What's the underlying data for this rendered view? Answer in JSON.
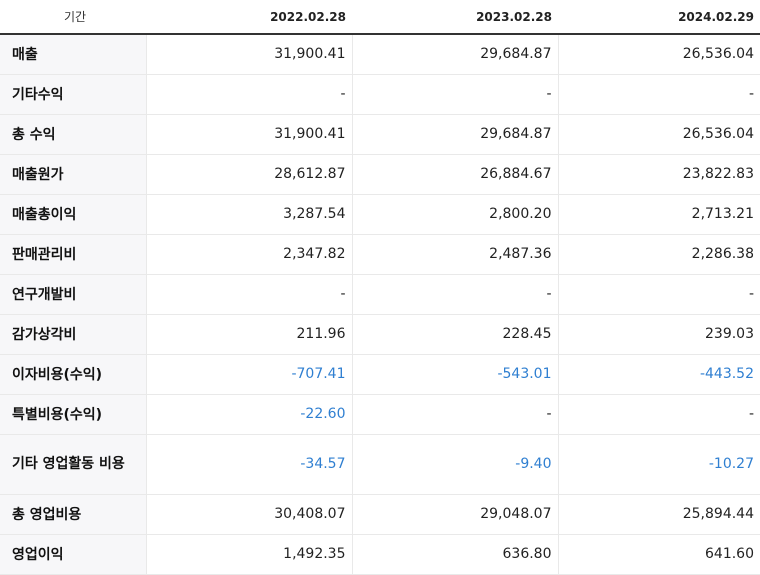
{
  "table": {
    "header": {
      "label": "기간",
      "periods": [
        "2022.02.28",
        "2023.02.28",
        "2024.02.29"
      ]
    },
    "rows": [
      {
        "label": "매출",
        "values": [
          "31,900.41",
          "29,684.87",
          "26,536.04"
        ]
      },
      {
        "label": "기타수익",
        "values": [
          "-",
          "-",
          "-"
        ]
      },
      {
        "label": "총 수익",
        "values": [
          "31,900.41",
          "29,684.87",
          "26,536.04"
        ]
      },
      {
        "label": "매출원가",
        "values": [
          "28,612.87",
          "26,884.67",
          "23,822.83"
        ]
      },
      {
        "label": "매출총이익",
        "values": [
          "3,287.54",
          "2,800.20",
          "2,713.21"
        ]
      },
      {
        "label": "판매관리비",
        "values": [
          "2,347.82",
          "2,487.36",
          "2,286.38"
        ]
      },
      {
        "label": "연구개발비",
        "values": [
          "-",
          "-",
          "-"
        ]
      },
      {
        "label": "감가상각비",
        "values": [
          "211.96",
          "228.45",
          "239.03"
        ]
      },
      {
        "label": "이자비용(수익)",
        "values": [
          "-707.41",
          "-543.01",
          "-443.52"
        ]
      },
      {
        "label": "특별비용(수익)",
        "values": [
          "-22.60",
          "-",
          "-"
        ]
      },
      {
        "label": "기타 영업활동 비용",
        "values": [
          "-34.57",
          "-9.40",
          "-10.27"
        ]
      },
      {
        "label": "총 영업비용",
        "values": [
          "30,408.07",
          "29,048.07",
          "25,894.44"
        ]
      },
      {
        "label": "영업이익",
        "values": [
          "1,492.35",
          "636.80",
          "641.60"
        ]
      }
    ]
  },
  "colors": {
    "negative": "#2f7fd1",
    "label_bg": "#f7f7f9",
    "separator": "#8a8a8a"
  }
}
